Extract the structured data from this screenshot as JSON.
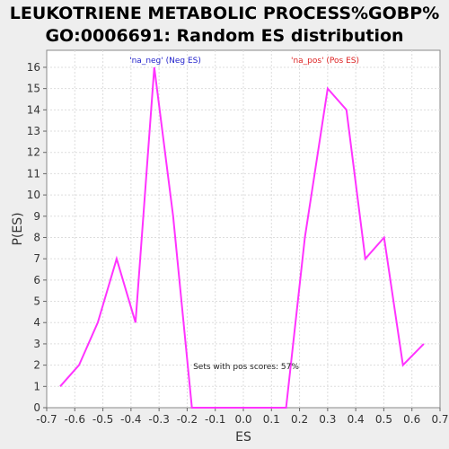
{
  "chart_data": {
    "type": "line",
    "title_line1": "LEUKOTRIENE METABOLIC PROCESS%GOBP%",
    "title_line2": "GO:0006691: Random ES distribution",
    "xlabel": "ES",
    "ylabel": "P(ES)",
    "xlim": [
      -0.7,
      0.7
    ],
    "ylim": [
      0,
      16.8
    ],
    "x_ticks": [
      "-0.7",
      "-0.6",
      "-0.5",
      "-0.4",
      "-0.3",
      "-0.2",
      "-0.1",
      "0.0",
      "0.1",
      "0.2",
      "0.3",
      "0.4",
      "0.5",
      "0.6",
      "0.7"
    ],
    "y_ticks": [
      "0",
      "1",
      "2",
      "3",
      "4",
      "5",
      "6",
      "7",
      "8",
      "9",
      "10",
      "11",
      "12",
      "13",
      "14",
      "15",
      "16"
    ],
    "grid": true,
    "line_color": "#ff33ff",
    "x": [
      -0.652,
      -0.585,
      -0.518,
      -0.451,
      -0.384,
      -0.317,
      -0.25,
      -0.183,
      -0.116,
      -0.049,
      0.018,
      0.085,
      0.152,
      0.219,
      0.3,
      0.367,
      0.434,
      0.501,
      0.568,
      0.642
    ],
    "y": [
      1,
      2,
      4,
      7,
      4,
      16,
      9,
      0,
      0,
      0,
      0,
      0,
      0,
      8,
      15,
      14,
      7,
      8,
      2,
      3
    ],
    "annotations": {
      "neg_label": "'na_neg' (Neg ES)",
      "neg_color": "#2222cc",
      "pos_label": "'na_pos' (Pos ES)",
      "pos_color": "#dd2222",
      "pos_scores": "Sets with pos scores: 57%"
    }
  }
}
